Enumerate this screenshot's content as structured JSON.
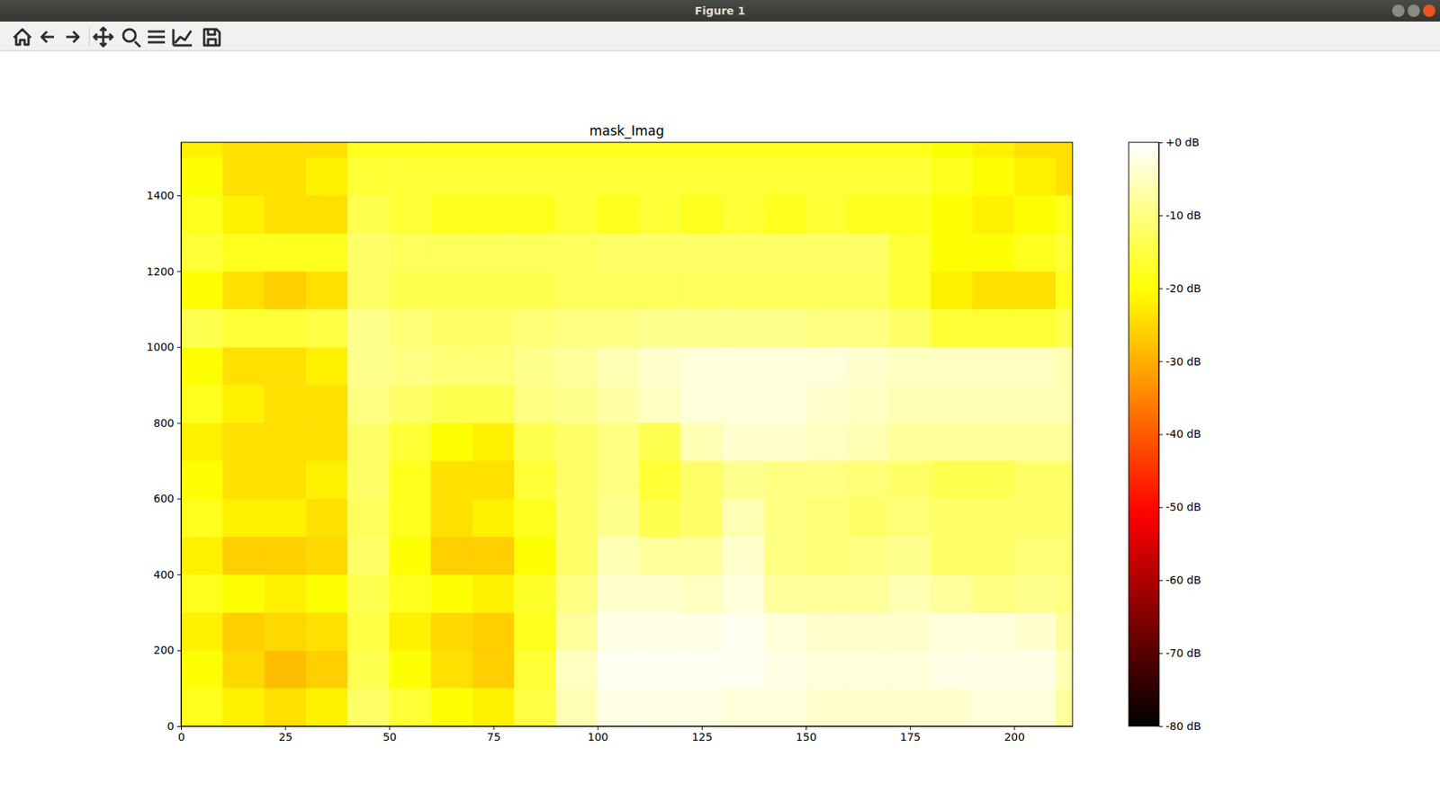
{
  "window": {
    "title": "Figure 1"
  },
  "chart_data": {
    "type": "heatmap",
    "title": "mask_Imag",
    "xlim": [
      0,
      214
    ],
    "xticks": [
      0,
      25,
      50,
      75,
      100,
      125,
      150,
      175,
      200
    ],
    "ylim": [
      0,
      1540
    ],
    "yticks": [
      0,
      200,
      400,
      600,
      800,
      1000,
      1200,
      1400
    ],
    "cells": {
      "x_edges": [
        0,
        10,
        20,
        30,
        40,
        50,
        60,
        70,
        80,
        90,
        100,
        110,
        120,
        130,
        140,
        150,
        160,
        170,
        180,
        190,
        200,
        210,
        214
      ],
      "y_edges": [
        0,
        100,
        200,
        300,
        400,
        500,
        600,
        700,
        800,
        900,
        1000,
        1100,
        1200,
        1300,
        1400,
        1500,
        1540
      ],
      "values": [
        [
          -18,
          -22,
          -24,
          -22,
          -12,
          -16,
          -20,
          -22,
          -15,
          -6,
          -2,
          -2,
          -2,
          -3,
          -3,
          -4,
          -4,
          -4,
          -4,
          -3,
          -3,
          -8
        ],
        [
          -20,
          -25,
          -28,
          -26,
          -14,
          -20,
          -24,
          -26,
          -16,
          -5,
          -1,
          -1,
          -1,
          -1,
          -2,
          -3,
          -3,
          -3,
          -2,
          -2,
          -2,
          -6
        ],
        [
          -22,
          -26,
          -25,
          -24,
          -15,
          -22,
          -25,
          -26,
          -18,
          -8,
          -2,
          -2,
          -2,
          -1,
          -3,
          -4,
          -4,
          -4,
          -3,
          -3,
          -4,
          -8
        ],
        [
          -18,
          -20,
          -22,
          -20,
          -14,
          -18,
          -20,
          -22,
          -17,
          -10,
          -4,
          -4,
          -5,
          -3,
          -8,
          -8,
          -8,
          -6,
          -8,
          -10,
          -9,
          -10
        ],
        [
          -22,
          -26,
          -26,
          -25,
          -12,
          -20,
          -26,
          -26,
          -20,
          -12,
          -6,
          -8,
          -8,
          -4,
          -10,
          -11,
          -10,
          -9,
          -12,
          -12,
          -11,
          -11
        ],
        [
          -18,
          -22,
          -22,
          -24,
          -13,
          -18,
          -24,
          -22,
          -18,
          -12,
          -9,
          -14,
          -12,
          -6,
          -10,
          -11,
          -12,
          -11,
          -12,
          -12,
          -12,
          -12
        ],
        [
          -20,
          -24,
          -24,
          -22,
          -12,
          -18,
          -24,
          -24,
          -16,
          -12,
          -10,
          -16,
          -12,
          -9,
          -10,
          -10,
          -11,
          -12,
          -14,
          -14,
          -12,
          -12
        ],
        [
          -22,
          -24,
          -24,
          -24,
          -12,
          -16,
          -20,
          -22,
          -14,
          -12,
          -10,
          -14,
          -6,
          -4,
          -4,
          -5,
          -6,
          -8,
          -8,
          -8,
          -8,
          -8
        ],
        [
          -18,
          -22,
          -24,
          -24,
          -10,
          -12,
          -14,
          -14,
          -10,
          -9,
          -7,
          -5,
          -3,
          -3,
          -3,
          -4,
          -5,
          -6,
          -6,
          -6,
          -6,
          -6
        ],
        [
          -20,
          -24,
          -24,
          -22,
          -9,
          -10,
          -11,
          -11,
          -9,
          -8,
          -6,
          -4,
          -3,
          -3,
          -3,
          -3,
          -4,
          -5,
          -5,
          -5,
          -5,
          -6
        ],
        [
          -14,
          -16,
          -16,
          -15,
          -9,
          -11,
          -12,
          -12,
          -11,
          -10,
          -10,
          -9,
          -9,
          -9,
          -9,
          -10,
          -10,
          -12,
          -16,
          -16,
          -16,
          -14
        ],
        [
          -20,
          -24,
          -26,
          -24,
          -12,
          -14,
          -14,
          -14,
          -14,
          -13,
          -13,
          -13,
          -13,
          -13,
          -13,
          -13,
          -13,
          -16,
          -22,
          -24,
          -24,
          -18
        ],
        [
          -16,
          -18,
          -18,
          -18,
          -12,
          -13,
          -13,
          -13,
          -13,
          -13,
          -12,
          -12,
          -12,
          -12,
          -12,
          -12,
          -12,
          -16,
          -20,
          -20,
          -18,
          -16
        ],
        [
          -18,
          -22,
          -24,
          -24,
          -14,
          -16,
          -18,
          -18,
          -18,
          -16,
          -18,
          -16,
          -18,
          -16,
          -18,
          -16,
          -18,
          -18,
          -20,
          -22,
          -20,
          -18
        ],
        [
          -20,
          -24,
          -24,
          -22,
          -16,
          -16,
          -16,
          -16,
          -16,
          -16,
          -16,
          -16,
          -16,
          -16,
          -16,
          -16,
          -16,
          -16,
          -18,
          -20,
          -22,
          -24
        ],
        [
          -22,
          -24,
          -24,
          -24,
          -18,
          -18,
          -18,
          -18,
          -18,
          -18,
          -18,
          -18,
          -18,
          -18,
          -18,
          -18,
          -18,
          -18,
          -20,
          -22,
          -24,
          -24
        ]
      ]
    },
    "colorbar": {
      "range": [
        -80,
        0
      ],
      "ticks": [
        {
          "value": 0,
          "label": "+0 dB"
        },
        {
          "value": -10,
          "label": "-10 dB"
        },
        {
          "value": -20,
          "label": "-20 dB"
        },
        {
          "value": -30,
          "label": "-30 dB"
        },
        {
          "value": -40,
          "label": "-40 dB"
        },
        {
          "value": -50,
          "label": "-50 dB"
        },
        {
          "value": -60,
          "label": "-60 dB"
        },
        {
          "value": -70,
          "label": "-70 dB"
        },
        {
          "value": -80,
          "label": "-80 dB"
        }
      ]
    }
  }
}
